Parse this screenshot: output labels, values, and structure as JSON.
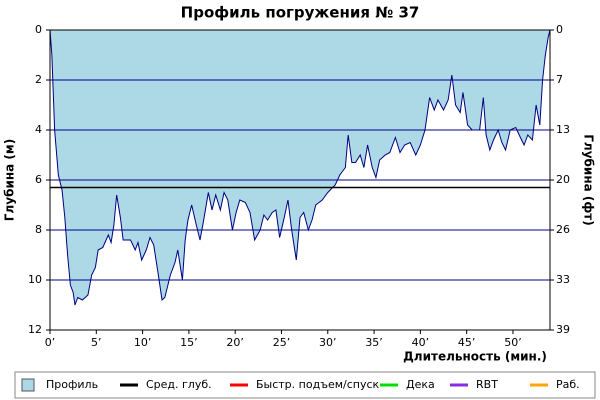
{
  "chart_data": {
    "type": "area",
    "title": "Профиль погружения № 37",
    "x_label": "Длительность (мин.)",
    "y_label": "Глубина (м)",
    "y2_label": "Глубина (фт)",
    "xlim": [
      0,
      54
    ],
    "xticks": [
      {
        "value": 0,
        "label": "0’"
      },
      {
        "value": 5,
        "label": "5’"
      },
      {
        "value": 10,
        "label": "10’"
      },
      {
        "value": 15,
        "label": "15’"
      },
      {
        "value": 20,
        "label": "20’"
      },
      {
        "value": 25,
        "label": "25’"
      },
      {
        "value": 30,
        "label": "30’"
      },
      {
        "value": 35,
        "label": "35’"
      },
      {
        "value": 40,
        "label": "40’"
      },
      {
        "value": 45,
        "label": "45’"
      },
      {
        "value": 50,
        "label": "50’"
      }
    ],
    "ylim": [
      0,
      12
    ],
    "yticks": [
      0,
      2,
      4,
      6,
      8,
      10,
      12
    ],
    "y2lim": [
      0,
      39.37
    ],
    "y2ticks": [
      {
        "value": 0,
        "label": "0"
      },
      {
        "value": 6.56,
        "label": "7"
      },
      {
        "value": 13.12,
        "label": "13"
      },
      {
        "value": 19.69,
        "label": "20"
      },
      {
        "value": 26.25,
        "label": "26"
      },
      {
        "value": 32.81,
        "label": "33"
      },
      {
        "value": 39.37,
        "label": "39"
      }
    ],
    "y_inverted": true,
    "grid": true,
    "grid_color": "#00008b",
    "series": [
      {
        "name": "Профиль",
        "color": "#add8e6",
        "line_color": "#000080",
        "x": [
          0,
          0.2,
          0.5,
          0.9,
          1.3,
          1.6,
          1.9,
          2.2,
          2.5,
          2.7,
          3.0,
          3.5,
          4.1,
          4.5,
          4.9,
          5.2,
          5.7,
          6.3,
          6.6,
          6.9,
          7.2,
          7.6,
          7.9,
          8.3,
          8.7,
          9.2,
          9.5,
          9.9,
          10.4,
          10.8,
          11.2,
          11.7,
          12.1,
          12.4,
          13.0,
          13.5,
          13.8,
          14.3,
          14.6,
          14.9,
          15.3,
          15.8,
          16.2,
          16.6,
          17.1,
          17.5,
          17.9,
          18.4,
          18.8,
          19.2,
          19.7,
          20.1,
          20.5,
          21.1,
          21.6,
          22.1,
          22.7,
          23.1,
          23.5,
          24.0,
          24.4,
          24.8,
          25.3,
          25.7,
          26.1,
          26.6,
          27.0,
          27.4,
          27.9,
          28.3,
          28.7,
          29.4,
          30.0,
          30.8,
          31.3,
          31.9,
          32.2,
          32.6,
          33.0,
          33.5,
          33.9,
          34.3,
          34.8,
          35.2,
          35.6,
          36.2,
          36.7,
          37.3,
          37.8,
          38.3,
          38.9,
          39.5,
          40.0,
          40.5,
          41.0,
          41.5,
          41.9,
          42.5,
          43.0,
          43.4,
          43.8,
          44.3,
          44.6,
          45.1,
          45.6,
          46.0,
          46.4,
          46.8,
          47.1,
          47.5,
          47.9,
          48.4,
          48.8,
          49.2,
          49.7,
          50.3,
          50.8,
          51.2,
          51.6,
          52.1,
          52.5,
          52.9,
          53.2,
          53.5,
          53.8,
          54.0
        ],
        "values": [
          0,
          1,
          4,
          5.8,
          6.4,
          7.5,
          9,
          10.2,
          10.5,
          11.0,
          10.7,
          10.8,
          10.6,
          9.8,
          9.5,
          8.8,
          8.7,
          8.2,
          8.5,
          7.8,
          6.6,
          7.5,
          8.4,
          8.4,
          8.4,
          8.8,
          8.5,
          9.2,
          8.8,
          8.3,
          8.6,
          9.8,
          10.8,
          10.7,
          9.8,
          9.3,
          8.8,
          10.0,
          8.4,
          7.6,
          7.0,
          7.8,
          8.4,
          7.6,
          6.5,
          7.2,
          6.6,
          7.2,
          6.5,
          6.8,
          8.0,
          7.3,
          6.8,
          6.9,
          7.3,
          8.4,
          8.0,
          7.4,
          7.6,
          7.3,
          7.2,
          8.3,
          7.5,
          6.8,
          8.0,
          9.2,
          7.5,
          7.3,
          8.0,
          7.6,
          7.0,
          6.8,
          6.5,
          6.2,
          5.8,
          5.5,
          4.2,
          5.3,
          5.3,
          5.0,
          5.5,
          4.6,
          5.5,
          5.9,
          5.2,
          5.0,
          4.9,
          4.3,
          4.9,
          4.6,
          4.5,
          5.0,
          4.6,
          4.0,
          2.7,
          3.2,
          2.8,
          3.2,
          2.8,
          1.8,
          3.0,
          3.3,
          2.5,
          3.8,
          4.0,
          4.0,
          4.0,
          2.7,
          4.2,
          4.8,
          4.4,
          4.0,
          4.5,
          4.8,
          4.0,
          3.9,
          4.3,
          4.6,
          4.2,
          4.4,
          3.0,
          3.8,
          2.0,
          1.0,
          0.3,
          0
        ]
      }
    ],
    "average_depth": {
      "name": "Сред. глуб.",
      "color": "#000000",
      "value": 6.3
    },
    "legend_extra": [
      {
        "name": "Быстр. подъем/спуск",
        "color": "#ff0000"
      },
      {
        "name": "Дека",
        "color": "#00e000"
      },
      {
        "name": "RBT",
        "color": "#8a2be2"
      },
      {
        "name": "Раб.",
        "color": "#ffa500"
      }
    ]
  }
}
